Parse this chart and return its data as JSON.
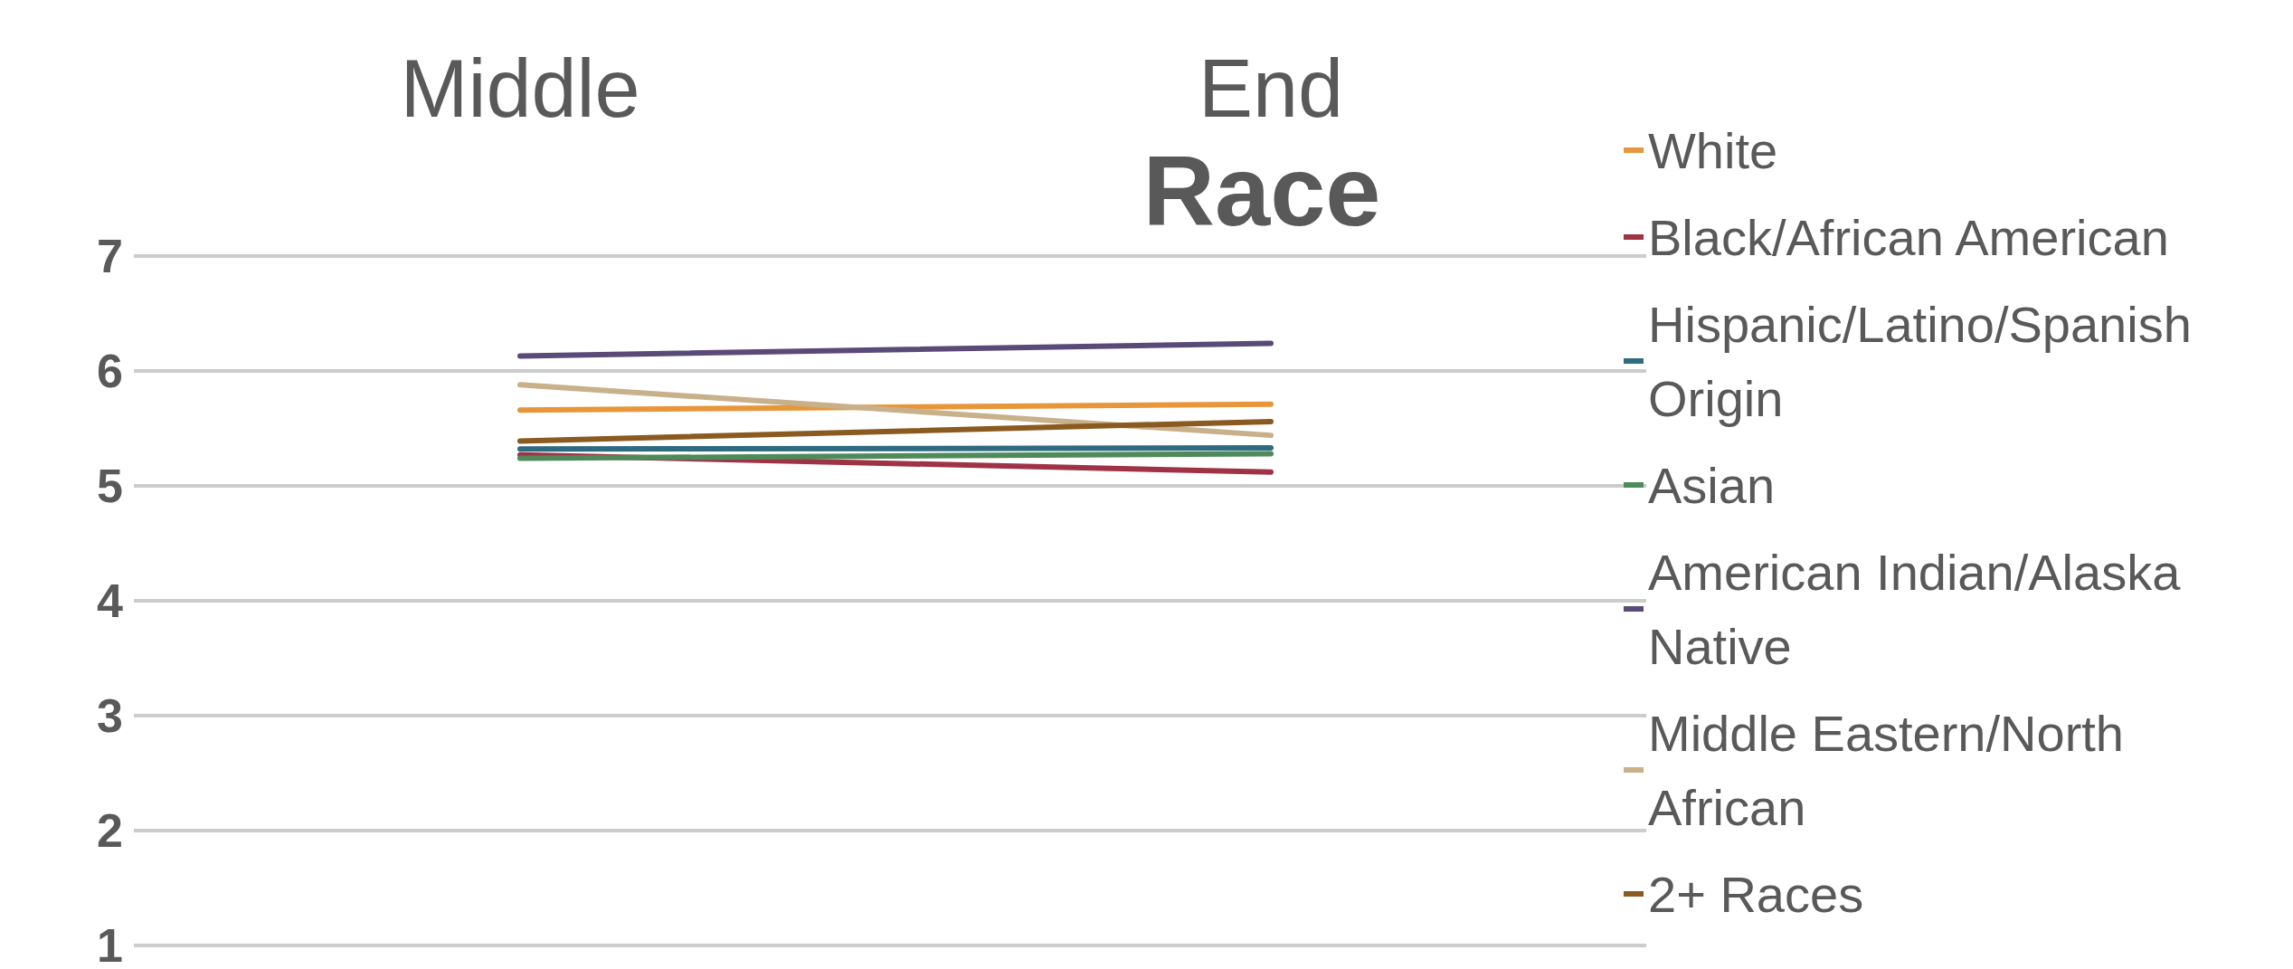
{
  "chart_data": {
    "type": "line",
    "title": "Race",
    "categories": [
      "Middle",
      "End"
    ],
    "series": [
      {
        "name": "White",
        "color": "#e8963a",
        "values": [
          5.66,
          5.71
        ]
      },
      {
        "name": "Black/African American",
        "color": "#a03246",
        "values": [
          5.27,
          5.12
        ]
      },
      {
        "name": "Hispanic/Latino/Spanish Origin",
        "color": "#2e6a80",
        "values": [
          5.32,
          5.33
        ]
      },
      {
        "name": "Asian",
        "color": "#4f8a5a",
        "values": [
          5.24,
          5.28
        ]
      },
      {
        "name": "American Indian/Alaska Native",
        "color": "#5a4a78",
        "values": [
          6.13,
          6.24
        ]
      },
      {
        "name": "Middle Eastern/North African",
        "color": "#c8b08a",
        "values": [
          5.88,
          5.44
        ]
      },
      {
        "name": "2+ Races",
        "color": "#8a5a20",
        "values": [
          5.39,
          5.56
        ]
      }
    ],
    "ylim": [
      1,
      7
    ],
    "yticks": [
      1,
      2,
      3,
      4,
      5,
      6,
      7
    ],
    "grid": "y",
    "legend": "right",
    "marker": "none",
    "line_style": "solid"
  }
}
